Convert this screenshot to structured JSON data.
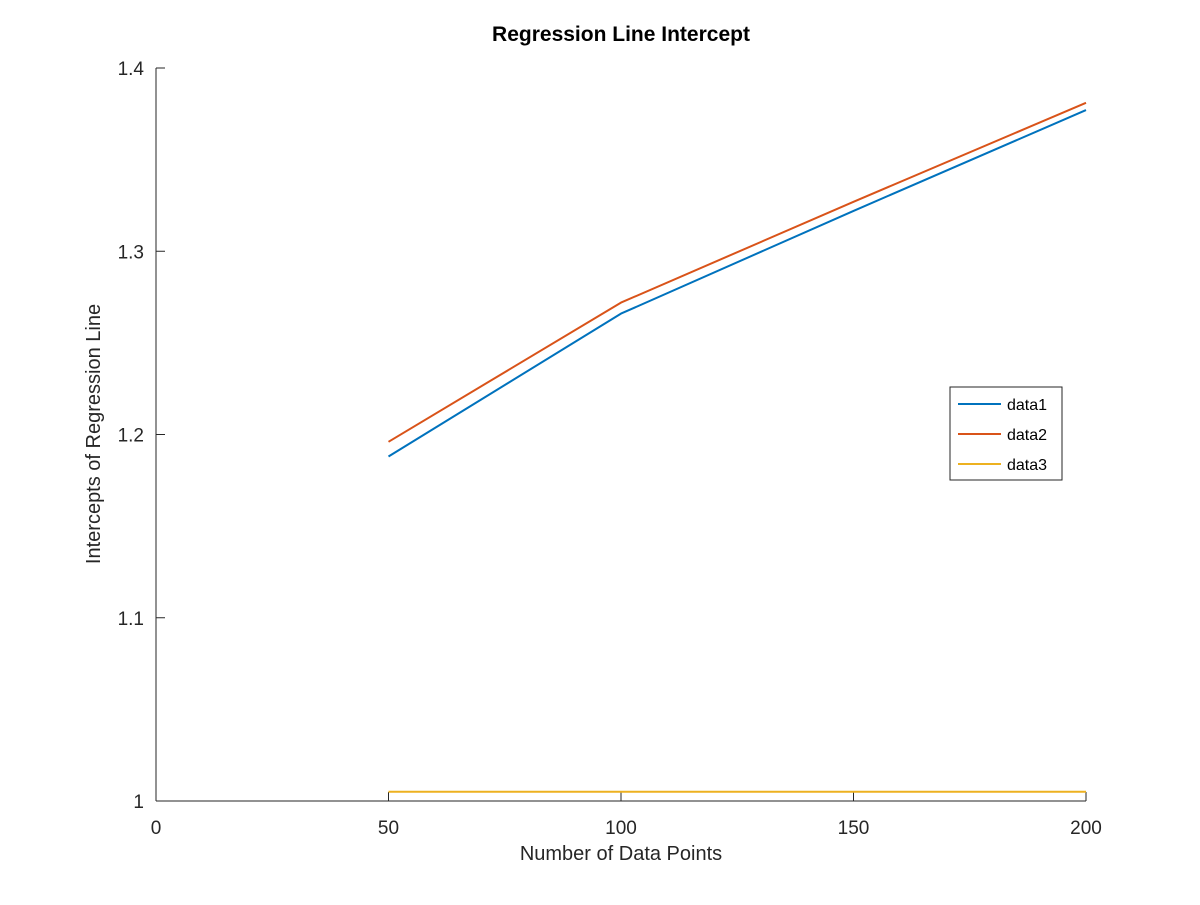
{
  "chart_data": {
    "type": "line",
    "title": "Regression Line Intercept",
    "xlabel": "Number of Data Points",
    "ylabel": "Intercepts of Regression Line",
    "xlim": [
      0,
      200
    ],
    "ylim": [
      1,
      1.4
    ],
    "x_ticks": [
      0,
      50,
      100,
      150,
      200
    ],
    "x_tick_labels": [
      "0",
      "50",
      "100",
      "150",
      "200"
    ],
    "y_ticks": [
      1,
      1.1,
      1.2,
      1.3,
      1.4
    ],
    "y_tick_labels": [
      "1",
      "1.1",
      "1.2",
      "1.3",
      "1.4"
    ],
    "grid": false,
    "legend_position": "right",
    "x": [
      50,
      100,
      150,
      200
    ],
    "series": [
      {
        "name": "data1",
        "color": "#0072BD",
        "values": [
          1.188,
          1.266,
          1.322,
          1.377
        ]
      },
      {
        "name": "data2",
        "color": "#D95319",
        "values": [
          1.196,
          1.272,
          1.327,
          1.381
        ]
      },
      {
        "name": "data3",
        "color": "#EDB120",
        "values": [
          1.005,
          1.005,
          1.005,
          1.005
        ]
      }
    ]
  }
}
